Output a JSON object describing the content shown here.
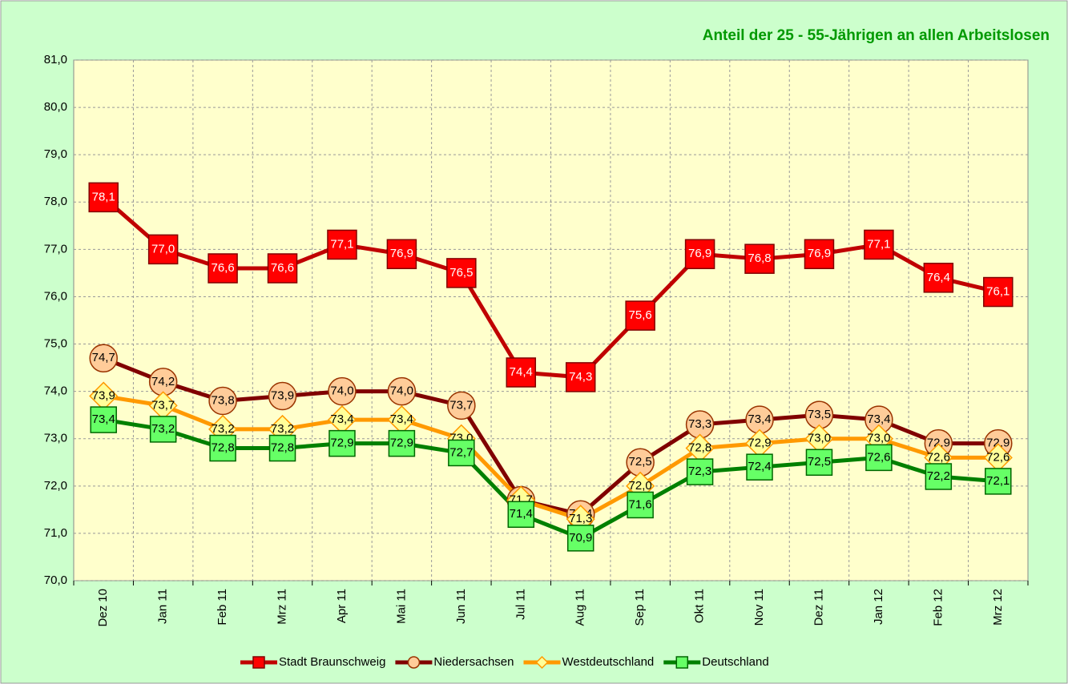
{
  "chart_data": {
    "type": "line",
    "title": "Anteil der 25 - 55-Jährigen an allen Arbeitslosen",
    "categories": [
      "Dez 10",
      "Jan 11",
      "Feb 11",
      "Mrz 11",
      "Apr 11",
      "Mai 11",
      "Jun 11",
      "Jul 11",
      "Aug 11",
      "Sep 11",
      "Okt 11",
      "Nov 11",
      "Dez 11",
      "Jan 12",
      "Feb 12",
      "Mrz 12"
    ],
    "series": [
      {
        "name": "Stadt Braunschweig",
        "color": "#c00000",
        "marker": "square",
        "marker_fill": "#ff0000",
        "marker_stroke": "#800000",
        "label_color": "#ffffff",
        "values": [
          78.1,
          77.0,
          76.6,
          76.6,
          77.1,
          76.9,
          76.5,
          74.4,
          74.3,
          75.6,
          76.9,
          76.8,
          76.9,
          77.1,
          76.4,
          76.1
        ],
        "value_labels": [
          "78,1",
          "77,0",
          "76,6",
          "76,6",
          "77,1",
          "76,9",
          "76,5",
          "74,4",
          "74,3",
          "75,6",
          "76,9",
          "76,8",
          "76,9",
          "77,1",
          "76,4",
          "76,1"
        ]
      },
      {
        "name": "Niedersachsen",
        "color": "#800000",
        "marker": "circle",
        "marker_fill": "#ffcc99",
        "marker_stroke": "#993300",
        "label_color": "#000000",
        "values": [
          74.7,
          74.2,
          73.8,
          73.9,
          74.0,
          74.0,
          73.7,
          71.7,
          71.4,
          72.5,
          73.3,
          73.4,
          73.5,
          73.4,
          72.9,
          72.9
        ],
        "value_labels": [
          "74,7",
          "74,2",
          "73,8",
          "73,9",
          "74,0",
          "74,0",
          "73,7",
          "71,7",
          "71,4",
          "72,5",
          "73,3",
          "73,4",
          "73,5",
          "73,4",
          "72,9",
          "72,9"
        ]
      },
      {
        "name": "Westdeutschland",
        "color": "#ff9900",
        "marker": "diamond",
        "marker_fill": "#ffff99",
        "marker_stroke": "#ff9900",
        "label_color": "#000000",
        "values": [
          73.9,
          73.7,
          73.2,
          73.2,
          73.4,
          73.4,
          73.0,
          71.7,
          71.3,
          72.0,
          72.8,
          72.9,
          73.0,
          73.0,
          72.6,
          72.6
        ],
        "value_labels": [
          "73,9",
          "73,7",
          "73,2",
          "73,2",
          "73,4",
          "73,4",
          "73,0",
          "71,7",
          "71,3",
          "72,0",
          "72,8",
          "72,9",
          "73,0",
          "73,0",
          "72,6",
          "72,6"
        ]
      },
      {
        "name": "Deutschland",
        "color": "#008000",
        "marker": "square",
        "marker_fill": "#66ff66",
        "marker_stroke": "#006600",
        "label_color": "#000000",
        "values": [
          73.4,
          73.2,
          72.8,
          72.8,
          72.9,
          72.9,
          72.7,
          71.4,
          70.9,
          71.6,
          72.3,
          72.4,
          72.5,
          72.6,
          72.2,
          72.1
        ],
        "value_labels": [
          "73,4",
          "73,2",
          "72,8",
          "72,8",
          "72,9",
          "72,9",
          "72,7",
          "71,4",
          "70,9",
          "71,6",
          "72,3",
          "72,4",
          "72,5",
          "72,6",
          "72,2",
          "72,1"
        ]
      }
    ],
    "ylim": [
      70,
      81
    ],
    "yticks": [
      {
        "value": 70,
        "label": "70,0"
      },
      {
        "value": 71,
        "label": "71,0"
      },
      {
        "value": 72,
        "label": "72,0"
      },
      {
        "value": 73,
        "label": "73,0"
      },
      {
        "value": 74,
        "label": "74,0"
      },
      {
        "value": 75,
        "label": "75,0"
      },
      {
        "value": 76,
        "label": "76,0"
      },
      {
        "value": 77,
        "label": "77,0"
      },
      {
        "value": 78,
        "label": "78,0"
      },
      {
        "value": 79,
        "label": "79,0"
      },
      {
        "value": 80,
        "label": "80,0"
      },
      {
        "value": 81,
        "label": "81,0"
      }
    ],
    "grid": true,
    "legend": "bottom"
  }
}
